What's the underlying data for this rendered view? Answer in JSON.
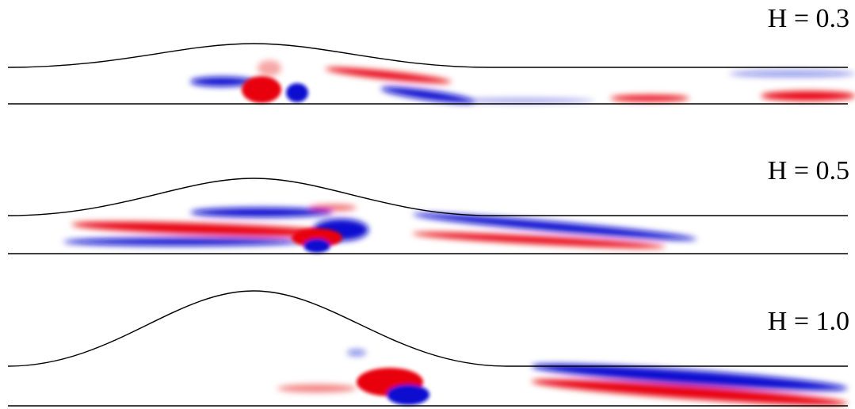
{
  "panels": [
    {
      "label": "H = 0.3"
    },
    {
      "label": "H = 0.5"
    },
    {
      "label": "H = 1.0"
    }
  ]
}
